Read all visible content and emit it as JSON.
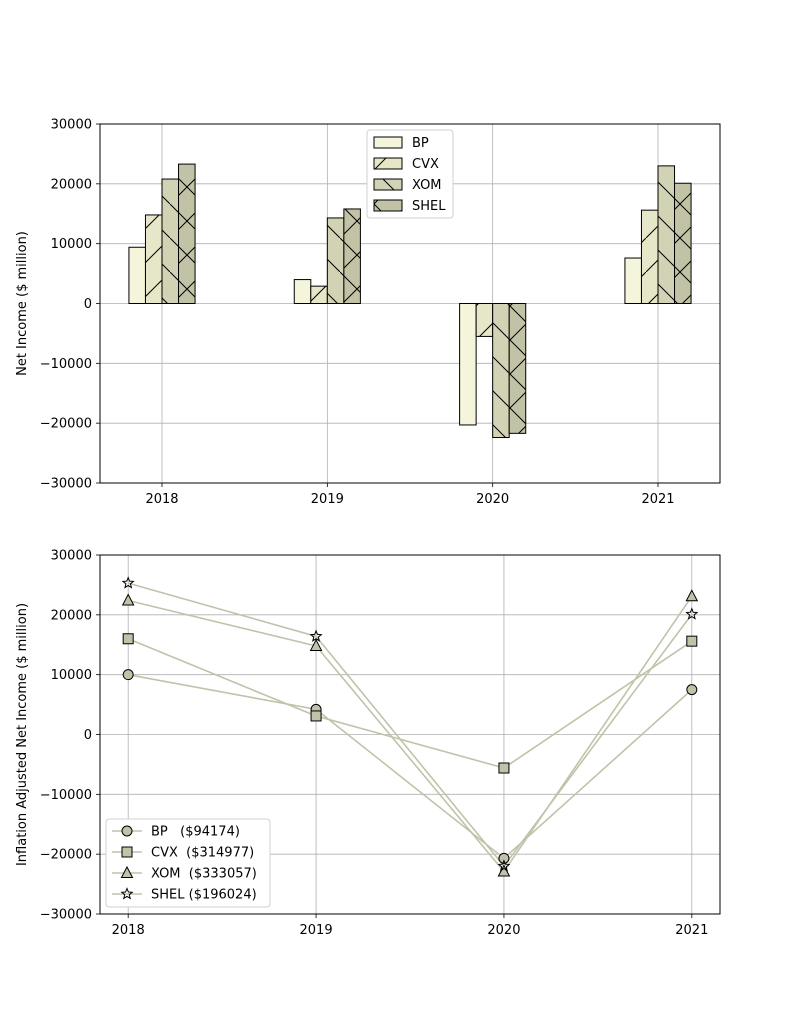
{
  "chart_data": [
    {
      "type": "bar",
      "title": "",
      "xlabel": "",
      "ylabel": "Net Income ($ million)",
      "ylim": [
        -30000,
        30000
      ],
      "yticks": [
        -30000,
        -20000,
        -10000,
        0,
        10000,
        20000,
        30000
      ],
      "ytick_labels": [
        "−30000",
        "−20000",
        "−10000",
        "0",
        "10000",
        "20000",
        "30000"
      ],
      "categories": [
        "2018",
        "2019",
        "2020",
        "2021"
      ],
      "grid": true,
      "legend_position": "top-center",
      "series": [
        {
          "name": "BP",
          "values": [
            9400,
            4000,
            -20300,
            7600
          ],
          "color": "#f5f5dc",
          "hatch": "none"
        },
        {
          "name": "CVX",
          "values": [
            14800,
            2900,
            -5500,
            15600
          ],
          "color": "#e6e6c8",
          "hatch": "forward"
        },
        {
          "name": "XOM",
          "values": [
            20800,
            14300,
            -22400,
            23000
          ],
          "color": "#d2d2b4",
          "hatch": "back"
        },
        {
          "name": "SHEL",
          "values": [
            23300,
            15800,
            -21700,
            20100
          ],
          "color": "#c2c2a6",
          "hatch": "cross"
        }
      ]
    },
    {
      "type": "line",
      "title": "",
      "xlabel": "",
      "ylabel": "Inflation Adjusted Net Income ($ million)",
      "ylim": [
        -30000,
        30000
      ],
      "yticks": [
        -30000,
        -20000,
        -10000,
        0,
        10000,
        20000,
        30000
      ],
      "ytick_labels": [
        "−30000",
        "−20000",
        "−10000",
        "0",
        "10000",
        "20000",
        "30000"
      ],
      "x": [
        "2018",
        "2019",
        "2020",
        "2021"
      ],
      "grid": true,
      "legend_position": "bottom-left",
      "line_color": "#c2c2aa",
      "series": [
        {
          "name": "BP   ($94174)",
          "values": [
            10000,
            4200,
            -20700,
            7500
          ],
          "marker": "circle"
        },
        {
          "name": "CVX  ($314977)",
          "values": [
            16000,
            3100,
            -5600,
            15600
          ],
          "marker": "square"
        },
        {
          "name": "XOM  ($333057)",
          "values": [
            22400,
            14800,
            -22900,
            23100
          ],
          "marker": "triangle"
        },
        {
          "name": "SHEL ($196024)",
          "values": [
            25300,
            16400,
            -22000,
            20100
          ],
          "marker": "star"
        }
      ]
    }
  ]
}
